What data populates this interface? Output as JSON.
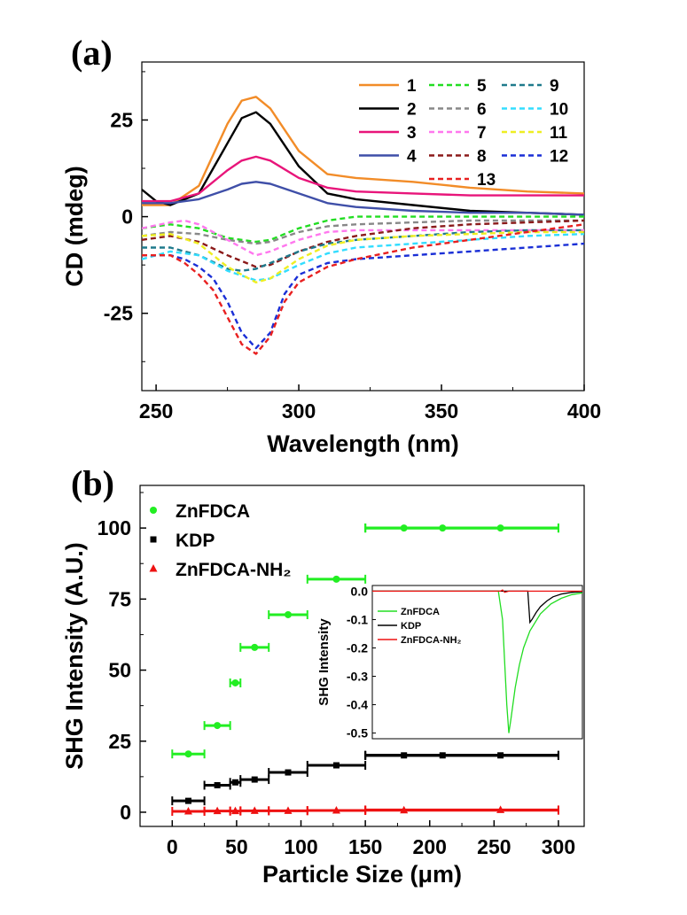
{
  "chart_data": [
    {
      "panel": "(a)",
      "type": "line",
      "xlabel": "Wavelength (nm)",
      "ylabel": "CD (mdeg)",
      "xlim": [
        245,
        400
      ],
      "ylim": [
        -45,
        40
      ],
      "xticks": [
        "250",
        "300",
        "350",
        "400"
      ],
      "yticks": [
        "25",
        "0",
        "-25"
      ],
      "series": [
        {
          "name": "1",
          "color": "#f28c28",
          "dash": "solid",
          "x": [
            245,
            255,
            265,
            275,
            280,
            285,
            290,
            300,
            310,
            320,
            340,
            360,
            380,
            400
          ],
          "y": [
            3,
            3,
            8,
            24,
            30,
            31,
            28,
            17,
            11,
            10,
            9,
            7.5,
            6.5,
            6
          ]
        },
        {
          "name": "2",
          "color": "#000000",
          "dash": "solid",
          "x": [
            245,
            250,
            255,
            265,
            275,
            280,
            285,
            290,
            300,
            310,
            320,
            340,
            360,
            380,
            400
          ],
          "y": [
            7,
            4,
            3,
            6,
            19,
            25.5,
            27,
            24,
            13,
            6,
            4.5,
            3,
            1.5,
            1,
            0.5
          ]
        },
        {
          "name": "3",
          "color": "#e8157a",
          "dash": "solid",
          "x": [
            245,
            255,
            265,
            275,
            280,
            285,
            290,
            300,
            310,
            320,
            340,
            360,
            380,
            400
          ],
          "y": [
            4,
            4,
            6,
            12,
            14.5,
            15.5,
            14.5,
            10,
            7.5,
            6.5,
            6,
            5.5,
            5.5,
            5.5
          ]
        },
        {
          "name": "4",
          "color": "#3f4fa8",
          "dash": "solid",
          "x": [
            245,
            255,
            265,
            275,
            280,
            285,
            290,
            300,
            310,
            320,
            340,
            360,
            380,
            400
          ],
          "y": [
            3.5,
            3.5,
            4.5,
            7,
            8.5,
            9,
            8.5,
            6,
            3.5,
            2.5,
            1.5,
            1,
            1,
            0.5
          ]
        },
        {
          "name": "5",
          "color": "#22dd22",
          "dash": "dashed",
          "x": [
            245,
            255,
            265,
            275,
            285,
            290,
            300,
            310,
            320,
            340,
            360,
            380,
            400
          ],
          "y": [
            -3,
            -2,
            -3,
            -5.5,
            -6.5,
            -6,
            -3,
            -1,
            0,
            0,
            0,
            0,
            0
          ]
        },
        {
          "name": "6",
          "color": "#888888",
          "dash": "dashed",
          "x": [
            245,
            255,
            265,
            275,
            285,
            290,
            300,
            310,
            320,
            340,
            360,
            380,
            400
          ],
          "y": [
            -5,
            -4,
            -4.5,
            -6,
            -7,
            -6.5,
            -4,
            -2.5,
            -2,
            -1.5,
            -1,
            -1,
            -1
          ]
        },
        {
          "name": "7",
          "color": "#ff77ee",
          "dash": "dashed",
          "x": [
            245,
            255,
            260,
            265,
            275,
            285,
            290,
            300,
            310,
            320,
            340,
            360,
            380,
            400
          ],
          "y": [
            -3,
            -1.5,
            -1,
            -2,
            -6,
            -10,
            -9,
            -6,
            -4,
            -3.5,
            -3.5,
            -3.5,
            -3.5,
            -3.5
          ]
        },
        {
          "name": "8",
          "color": "#8b1a1a",
          "dash": "dashed",
          "x": [
            245,
            255,
            265,
            275,
            285,
            290,
            300,
            310,
            320,
            340,
            360,
            380,
            400
          ],
          "y": [
            -6,
            -5,
            -6.5,
            -10,
            -13,
            -12.5,
            -9,
            -6.5,
            -5,
            -3,
            -2,
            -1.5,
            -1
          ]
        },
        {
          "name": "9",
          "color": "#1f7a8c",
          "dash": "dashed",
          "x": [
            245,
            255,
            265,
            275,
            280,
            285,
            290,
            300,
            310,
            320,
            340,
            360,
            380,
            400
          ],
          "y": [
            -8,
            -8,
            -10,
            -13.5,
            -14,
            -13.5,
            -12,
            -9,
            -7,
            -6,
            -5,
            -4,
            -3.5,
            -3.5
          ]
        },
        {
          "name": "10",
          "color": "#33ddff",
          "dash": "dashed",
          "x": [
            245,
            255,
            265,
            275,
            285,
            290,
            300,
            310,
            320,
            340,
            360,
            380,
            400
          ],
          "y": [
            -11,
            -9,
            -10,
            -14,
            -16.5,
            -16,
            -12.5,
            -9.5,
            -8,
            -7,
            -6,
            -5,
            -4.5
          ]
        },
        {
          "name": "11",
          "color": "#eeee22",
          "dash": "dashed",
          "x": [
            245,
            255,
            265,
            275,
            285,
            290,
            300,
            310,
            320,
            340,
            360,
            380,
            400
          ],
          "y": [
            -5,
            -4.5,
            -7,
            -13,
            -17,
            -16,
            -11,
            -7.5,
            -6,
            -5,
            -4.5,
            -4,
            -4
          ]
        },
        {
          "name": "12",
          "color": "#1a2fd6",
          "dash": "dashed",
          "x": [
            245,
            255,
            260,
            265,
            270,
            275,
            280,
            285,
            290,
            295,
            300,
            310,
            320,
            340,
            360,
            380,
            400
          ],
          "y": [
            -10,
            -10,
            -11,
            -13,
            -16,
            -22,
            -30,
            -34,
            -30,
            -20,
            -15,
            -12,
            -11,
            -10,
            -9,
            -8,
            -7
          ]
        },
        {
          "name": "13",
          "color": "#e82020",
          "dash": "dashed",
          "x": [
            245,
            255,
            260,
            265,
            270,
            275,
            280,
            285,
            290,
            295,
            300,
            310,
            320,
            340,
            360,
            380,
            400
          ],
          "y": [
            -10,
            -10,
            -12,
            -15,
            -19,
            -26,
            -33,
            -35.5,
            -31,
            -22,
            -17,
            -13,
            -11,
            -8,
            -6,
            -4,
            -2
          ]
        }
      ]
    },
    {
      "panel": "(b)",
      "type": "scatter",
      "xlabel": "Particle Size (μm)",
      "ylabel": "SHG Intensity (A.U.)",
      "xlim": [
        -25,
        320
      ],
      "ylim": [
        -5,
        115
      ],
      "xticks": [
        "0",
        "50",
        "100",
        "150",
        "200",
        "250",
        "300"
      ],
      "yticks": [
        "0",
        "25",
        "50",
        "75",
        "100"
      ],
      "series": [
        {
          "name": "ZnFDCA",
          "color": "#22ee22",
          "marker": "circle",
          "points": [
            {
              "x": 12.5,
              "y": 20.5,
              "xmin": 0,
              "xmax": 25
            },
            {
              "x": 35,
              "y": 30.5,
              "xmin": 25,
              "xmax": 45
            },
            {
              "x": 49,
              "y": 45.5,
              "xmin": 45,
              "xmax": 53
            },
            {
              "x": 64,
              "y": 58,
              "xmin": 53,
              "xmax": 75
            },
            {
              "x": 90,
              "y": 69.5,
              "xmin": 75,
              "xmax": 105
            },
            {
              "x": 127.5,
              "y": 82,
              "xmin": 105,
              "xmax": 150
            },
            {
              "x": 180,
              "y": 100,
              "xmin": 150,
              "xmax": 300
            },
            {
              "x": 210,
              "y": 100,
              "xmin": 150,
              "xmax": 300
            },
            {
              "x": 255,
              "y": 100,
              "xmin": 150,
              "xmax": 300
            }
          ]
        },
        {
          "name": "KDP",
          "color": "#000000",
          "marker": "square",
          "points": [
            {
              "x": 12.5,
              "y": 4,
              "xmin": 0,
              "xmax": 25
            },
            {
              "x": 35,
              "y": 9.5,
              "xmin": 25,
              "xmax": 45
            },
            {
              "x": 49,
              "y": 10.5,
              "xmin": 45,
              "xmax": 53
            },
            {
              "x": 64,
              "y": 11.5,
              "xmin": 53,
              "xmax": 75
            },
            {
              "x": 90,
              "y": 14,
              "xmin": 75,
              "xmax": 105
            },
            {
              "x": 127.5,
              "y": 16.5,
              "xmin": 105,
              "xmax": 150
            },
            {
              "x": 180,
              "y": 20,
              "xmin": 150,
              "xmax": 300
            },
            {
              "x": 210,
              "y": 20,
              "xmin": 150,
              "xmax": 300
            },
            {
              "x": 255,
              "y": 20,
              "xmin": 150,
              "xmax": 300
            }
          ]
        },
        {
          "name": "ZnFDCA-NH₂",
          "color": "#ee1111",
          "marker": "triangle",
          "points": [
            {
              "x": 12.5,
              "y": 0.3,
              "xmin": 0,
              "xmax": 25
            },
            {
              "x": 35,
              "y": 0.4,
              "xmin": 25,
              "xmax": 45
            },
            {
              "x": 49,
              "y": 0.4,
              "xmin": 45,
              "xmax": 53
            },
            {
              "x": 64,
              "y": 0.5,
              "xmin": 53,
              "xmax": 75
            },
            {
              "x": 90,
              "y": 0.5,
              "xmin": 75,
              "xmax": 105
            },
            {
              "x": 127.5,
              "y": 0.6,
              "xmin": 105,
              "xmax": 150
            },
            {
              "x": 180,
              "y": 0.7,
              "xmin": 150,
              "xmax": 300
            },
            {
              "x": 255,
              "y": 0.8,
              "xmin": 150,
              "xmax": 300
            }
          ]
        }
      ],
      "inset": {
        "type": "line",
        "ylabel": "SHG Intensity",
        "xlim": [
          0,
          1
        ],
        "ylim": [
          -0.52,
          0.02
        ],
        "yticks": [
          "0.0",
          "-0.1",
          "-0.2",
          "-0.3",
          "-0.4",
          "-0.5"
        ],
        "series": [
          {
            "name": "ZnFDCA",
            "color": "#22dd22",
            "x": [
              0,
              0.6,
              0.62,
              0.64,
              0.65,
              0.66,
              0.68,
              0.7,
              0.72,
              0.75,
              0.8,
              0.85,
              0.9,
              0.95,
              1.0
            ],
            "y": [
              0,
              0,
              -0.1,
              -0.4,
              -0.5,
              -0.45,
              -0.34,
              -0.26,
              -0.2,
              -0.14,
              -0.08,
              -0.045,
              -0.025,
              -0.012,
              -0.006
            ]
          },
          {
            "name": "KDP",
            "color": "#000000",
            "x": [
              0,
              0.74,
              0.75,
              0.76,
              0.78,
              0.8,
              0.83,
              0.86,
              0.9,
              0.95,
              1.0
            ],
            "y": [
              0,
              0,
              -0.11,
              -0.1,
              -0.075,
              -0.055,
              -0.035,
              -0.02,
              -0.01,
              -0.004,
              -0.002
            ]
          },
          {
            "name": "ZnFDCA-NH₂",
            "color": "#ee1111",
            "x": [
              0,
              0.61,
              0.62,
              0.63,
              0.65,
              1.0
            ],
            "y": [
              0,
              0,
              0.004,
              -0.004,
              0,
              0
            ]
          }
        ]
      }
    }
  ],
  "labels": {
    "panel_a": "(a)",
    "panel_b": "(b)"
  }
}
